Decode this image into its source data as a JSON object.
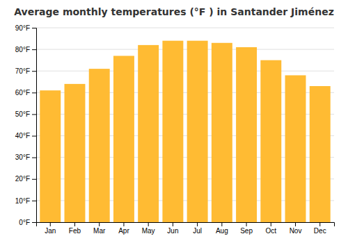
{
  "chart_data": {
    "type": "bar",
    "title": "Average monthly temperatures (°F ) in Santander Jiménez",
    "categories": [
      "Jan",
      "Feb",
      "Mar",
      "Apr",
      "May",
      "Jun",
      "Jul",
      "Aug",
      "Sep",
      "Oct",
      "Nov",
      "Dec"
    ],
    "values": [
      61,
      64,
      71,
      77,
      82,
      84,
      84,
      83,
      81,
      75,
      68,
      63
    ],
    "color": "#FFBB33",
    "ylim": [
      0,
      90
    ],
    "yticks": [
      {
        "value": 0,
        "label": "0°F"
      },
      {
        "value": 10,
        "label": "10°F"
      },
      {
        "value": 20,
        "label": "20°F"
      },
      {
        "value": 30,
        "label": "30°F"
      },
      {
        "value": 40,
        "label": "40°F"
      },
      {
        "value": 50,
        "label": "50°F"
      },
      {
        "value": 60,
        "label": "60°F"
      },
      {
        "value": 70,
        "label": "70°F"
      },
      {
        "value": 80,
        "label": "80°F"
      },
      {
        "value": 90,
        "label": "90°F"
      }
    ],
    "grid": true
  }
}
